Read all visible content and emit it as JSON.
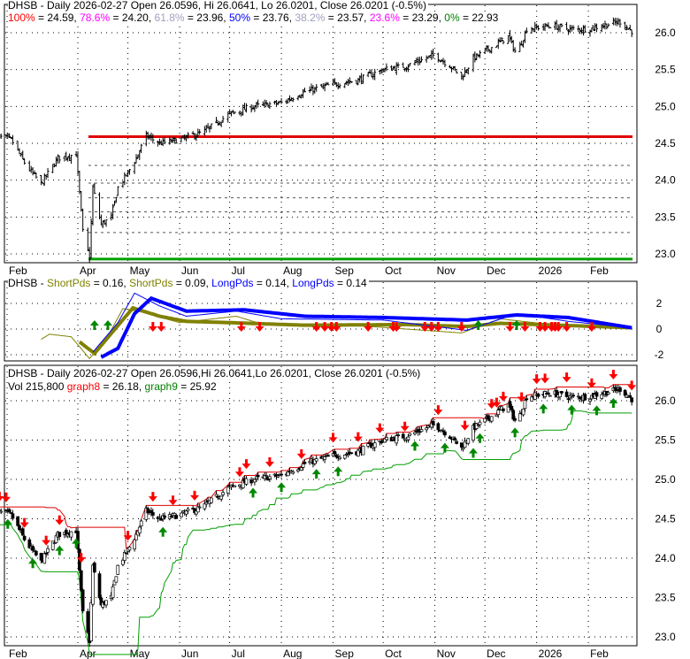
{
  "chart_data": [
    {
      "type": "ohlc",
      "title": "DHSB - Daily 2026-02-27 Open 26.0596, Hi 26.0641, Lo 26.0201, Close 26.0201 (-0.5%)",
      "fib_levels": [
        {
          "label": "100%",
          "value": 24.59,
          "text": "= 24.59,",
          "color": "#ff0000"
        },
        {
          "label": "78.6%",
          "value": 24.2,
          "text": "= 24.20,",
          "color": "#ff00ff"
        },
        {
          "label": "61.8%",
          "value": 23.96,
          "text": "= 23.96,",
          "color": "#a0a0c0"
        },
        {
          "label": "50%",
          "value": 23.76,
          "text": "= 23.76,",
          "color": "#0000ff"
        },
        {
          "label": "38.2%",
          "value": 23.57,
          "text": "= 23.57,",
          "color": "#a0a0c0"
        },
        {
          "label": "23.6%",
          "value": 23.29,
          "text": "= 23.29,",
          "color": "#ff00ff"
        },
        {
          "label": "0%",
          "value": 22.93,
          "text": "= 22.93",
          "color": "#008000"
        }
      ],
      "ylim": [
        22.85,
        26.45
      ],
      "yticks": [
        "26.0",
        "25.5",
        "25.0",
        "24.5",
        "24.0",
        "23.5",
        "23.0"
      ],
      "xticks": [
        {
          "label": "Feb",
          "date": "2025-02-04"
        },
        {
          "label": "Apr",
          "date": "2025-04-01"
        },
        {
          "label": "May",
          "date": "2025-05-01"
        },
        {
          "label": "Jun",
          "date": "2025-06-01"
        },
        {
          "label": "Jul",
          "date": "2025-07-01"
        },
        {
          "label": "Aug",
          "date": "2025-08-01"
        },
        {
          "label": "Sep",
          "date": "2025-09-01"
        },
        {
          "label": "Oct",
          "date": "2025-10-01"
        },
        {
          "label": "Nov",
          "date": "2025-11-01"
        },
        {
          "label": "Dec",
          "date": "2025-12-01"
        },
        {
          "label": "2026",
          "date": "2026-01-01"
        },
        {
          "label": "Feb",
          "date": "2026-02-01"
        }
      ],
      "close_points": [
        [
          "2025-02-10",
          24.6
        ],
        [
          "2025-02-20",
          24.55
        ],
        [
          "2025-03-01",
          24.2
        ],
        [
          "2025-03-10",
          23.95
        ],
        [
          "2025-03-20",
          24.3
        ],
        [
          "2025-03-31",
          24.35
        ],
        [
          "2025-04-04",
          23.3
        ],
        [
          "2025-04-08",
          22.95
        ],
        [
          "2025-04-10",
          23.9
        ],
        [
          "2025-04-15",
          23.4
        ],
        [
          "2025-04-21",
          23.5
        ],
        [
          "2025-04-25",
          23.9
        ],
        [
          "2025-05-01",
          24.1
        ],
        [
          "2025-05-06",
          24.3
        ],
        [
          "2025-05-12",
          24.6
        ],
        [
          "2025-05-20",
          24.5
        ],
        [
          "2025-06-01",
          24.55
        ],
        [
          "2025-06-15",
          24.65
        ],
        [
          "2025-07-01",
          24.9
        ],
        [
          "2025-07-15",
          25.0
        ],
        [
          "2025-08-01",
          25.05
        ],
        [
          "2025-08-15",
          25.2
        ],
        [
          "2025-09-01",
          25.3
        ],
        [
          "2025-09-15",
          25.35
        ],
        [
          "2025-10-01",
          25.5
        ],
        [
          "2025-10-15",
          25.55
        ],
        [
          "2025-11-01",
          25.7
        ],
        [
          "2025-11-10",
          25.55
        ],
        [
          "2025-11-17",
          25.4
        ],
        [
          "2025-11-24",
          25.65
        ],
        [
          "2025-12-05",
          25.8
        ],
        [
          "2025-12-15",
          25.95
        ],
        [
          "2025-12-20",
          25.7
        ],
        [
          "2025-12-26",
          26.05
        ],
        [
          "2026-01-10",
          26.1
        ],
        [
          "2026-01-20",
          26.05
        ],
        [
          "2026-02-01",
          26.05
        ],
        [
          "2026-02-10",
          26.1
        ],
        [
          "2026-02-20",
          26.15
        ],
        [
          "2026-02-27",
          26.02
        ]
      ]
    },
    {
      "type": "line",
      "title_prefix": "DHSB -",
      "legend": [
        {
          "name": "ShortPds",
          "text": "= 0.16,",
          "color": "#808000"
        },
        {
          "name": "ShortPds",
          "text": "= 0.09,",
          "color": "#808000"
        },
        {
          "name": "LongPds",
          "text": "= 0.14,",
          "color": "#0000ff"
        },
        {
          "name": "LongPds",
          "text": "= 0.14",
          "color": "#0000ff"
        }
      ],
      "yticks": [
        "2",
        "0",
        "-2"
      ],
      "ylim": [
        -3.2,
        3.2
      ],
      "series": [
        {
          "name": "ShortPds thick",
          "color": "#808000",
          "width": 4,
          "points": [
            [
              "2025-04-02",
              -1.0
            ],
            [
              "2025-04-11",
              -1.9
            ],
            [
              "2025-04-20",
              -0.5
            ],
            [
              "2025-05-04",
              1.65
            ],
            [
              "2025-05-20",
              1.0
            ],
            [
              "2025-06-05",
              0.6
            ],
            [
              "2025-07-01",
              0.5
            ],
            [
              "2025-08-15",
              0.3
            ],
            [
              "2025-10-15",
              0.35
            ],
            [
              "2025-11-20",
              0.2
            ],
            [
              "2025-12-10",
              0.45
            ],
            [
              "2026-01-15",
              0.3
            ],
            [
              "2026-02-27",
              0.1
            ]
          ]
        },
        {
          "name": "ShortPds thin",
          "color": "#808000",
          "width": 1,
          "points": [
            [
              "2025-03-10",
              -0.8
            ],
            [
              "2025-03-15",
              -0.4
            ],
            [
              "2025-03-28",
              -0.6
            ],
            [
              "2025-04-08",
              -2.3
            ],
            [
              "2025-04-18",
              -0.8
            ],
            [
              "2025-04-28",
              1.6
            ],
            [
              "2025-05-10",
              1.3
            ],
            [
              "2025-06-01",
              0.5
            ],
            [
              "2025-07-05",
              1.0
            ],
            [
              "2025-07-20",
              0.4
            ],
            [
              "2025-09-01",
              0.4
            ],
            [
              "2025-11-17",
              -0.3
            ],
            [
              "2025-12-10",
              0.8
            ],
            [
              "2026-01-20",
              0.2
            ],
            [
              "2026-02-27",
              0.1
            ]
          ]
        },
        {
          "name": "LongPds thick",
          "color": "#0000ff",
          "width": 4,
          "points": [
            [
              "2025-04-15",
              -2.2
            ],
            [
              "2025-04-25",
              -1.5
            ],
            [
              "2025-05-05",
              1.2
            ],
            [
              "2025-05-15",
              2.4
            ],
            [
              "2025-06-05",
              1.4
            ],
            [
              "2025-07-10",
              1.5
            ],
            [
              "2025-08-15",
              1.0
            ],
            [
              "2025-10-01",
              0.9
            ],
            [
              "2025-11-20",
              0.7
            ],
            [
              "2025-12-20",
              1.1
            ],
            [
              "2026-01-20",
              0.9
            ],
            [
              "2026-02-27",
              0.1
            ]
          ]
        },
        {
          "name": "LongPds thin",
          "color": "#0000ff",
          "width": 1,
          "points": [
            [
              "2025-04-10",
              -1.8
            ],
            [
              "2025-04-25",
              0.5
            ],
            [
              "2025-05-05",
              2.8
            ],
            [
              "2025-05-20",
              1.8
            ],
            [
              "2025-06-05",
              1.0
            ],
            [
              "2025-07-05",
              1.4
            ],
            [
              "2025-08-01",
              0.8
            ],
            [
              "2025-10-01",
              0.7
            ],
            [
              "2025-11-20",
              -0.1
            ],
            [
              "2025-12-20",
              1.2
            ],
            [
              "2026-01-20",
              0.6
            ],
            [
              "2026-02-27",
              0.1
            ]
          ]
        }
      ],
      "down_arrows": [
        "2025-05-16",
        "2025-05-21",
        "2025-07-08",
        "2025-07-19",
        "2025-08-22",
        "2025-08-27",
        "2025-08-31",
        "2025-09-03",
        "2025-09-22",
        "2025-10-07",
        "2025-10-09",
        "2025-10-26",
        "2025-10-30",
        "2025-11-03",
        "2025-11-17",
        "2025-12-16",
        "2025-12-25",
        "2026-01-03",
        "2026-01-06",
        "2026-01-10",
        "2026-01-12",
        "2026-01-14",
        "2026-01-19",
        "2026-02-03"
      ],
      "up_arrows": [
        "2025-04-11",
        "2025-04-19",
        "2025-11-27",
        "2025-12-20"
      ]
    },
    {
      "type": "candlestick",
      "title": "DHSB - Daily 2026-02-27 Open 26.0596,Hi 26.0641,Lo 26.0201, Close 26.0201 (-0.5%)",
      "vol_label": "Vol 215,800",
      "graph8": {
        "name": "graph8",
        "text": "= 26.18,",
        "color": "#ff0000"
      },
      "graph9": {
        "name": "graph9",
        "text": "= 25.92",
        "color": "#008000"
      },
      "yticks": [
        "26.0",
        "25.5",
        "25.0",
        "24.5",
        "24.0",
        "23.5",
        "23.0"
      ],
      "down_arrows": [
        "2025-02-13",
        "2025-02-17",
        "2025-02-28",
        "2025-03-13",
        "2025-03-21",
        "2025-04-03",
        "2025-05-01",
        "2025-05-16",
        "2025-05-28",
        "2025-06-10",
        "2025-07-06",
        "2025-07-12",
        "2025-07-26",
        "2025-08-13",
        "2025-09-01",
        "2025-09-16",
        "2025-09-29",
        "2025-10-14",
        "2025-11-02",
        "2025-11-19",
        "2025-12-05",
        "2025-12-08",
        "2025-12-12",
        "2025-12-23",
        "2026-01-01",
        "2026-01-06",
        "2026-01-19",
        "2026-02-03",
        "2026-02-15",
        "2026-02-27"
      ],
      "up_arrows": [
        "2025-02-18",
        "2025-03-05",
        "2025-03-22",
        "2025-03-31",
        "2025-05-22",
        "2025-07-15",
        "2025-08-02",
        "2025-08-23",
        "2025-09-04",
        "2025-10-19",
        "2025-11-08",
        "2025-11-24",
        "2025-11-28",
        "2025-12-19",
        "2026-01-04",
        "2026-01-22",
        "2026-02-06",
        "2026-02-16"
      ]
    }
  ]
}
